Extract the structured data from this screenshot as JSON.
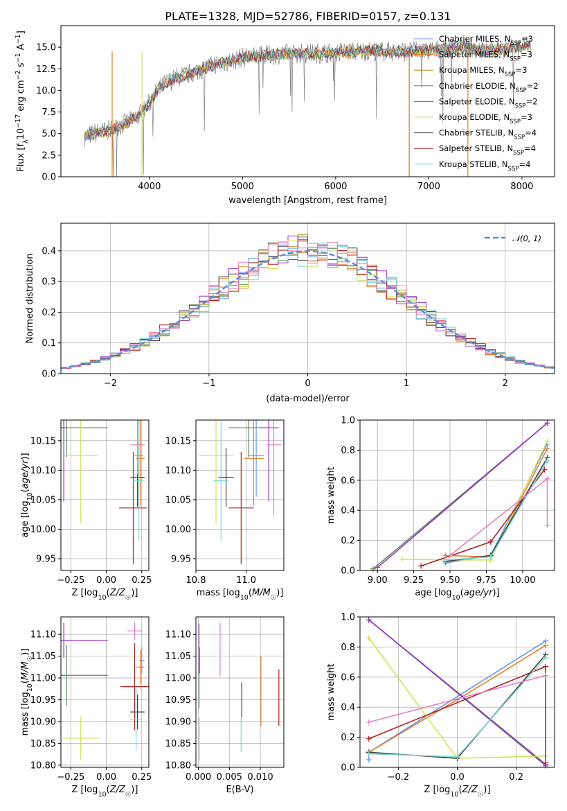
{
  "page": {
    "title": "PLATE=1328, MJD=52786, FIBERID=0157, z=0.131"
  },
  "chart_data": [
    {
      "id": "spectrum",
      "type": "line",
      "title": "PLATE=1328, MJD=52786, FIBERID=0157, z=0.131",
      "xlabel": "wavelength [Angstrom, rest frame]",
      "ylabel": "Flux [f_λ 10^-17 erg cm^-2 s^-1 A^-1]",
      "xlim": [
        3050,
        8350
      ],
      "ylim": [
        0,
        17.5
      ],
      "xticks": [
        4000,
        5000,
        6000,
        7000,
        8000
      ],
      "yticks": [
        0.0,
        2.5,
        5.0,
        7.5,
        10.0,
        12.5,
        15.0
      ],
      "xtick_labels": [
        "4000",
        "5000",
        "6000",
        "7000",
        "8000"
      ],
      "ytick_labels": [
        "0.0",
        "2.5",
        "5.0",
        "7.5",
        "10.0",
        "12.5",
        "15.0"
      ],
      "grid": false,
      "legend_position": "top-right",
      "data_color": "#808080",
      "data_x": [
        3300,
        3400,
        3500,
        3600,
        3700,
        3800,
        3900,
        4000,
        4100,
        4200,
        4300,
        4400,
        4500,
        4600,
        4700,
        4800,
        4900,
        5000,
        5200,
        5400,
        5600,
        5800,
        6000,
        6200,
        6400,
        6600,
        6800,
        7000,
        7200,
        7400,
        7600,
        7800,
        8000,
        8100
      ],
      "data_y": [
        4.6,
        5.0,
        5.2,
        5.5,
        6.0,
        6.5,
        7.2,
        8.5,
        10.2,
        11.0,
        11.5,
        11.8,
        12.2,
        12.6,
        13.0,
        13.2,
        13.5,
        13.8,
        14.0,
        14.2,
        14.3,
        14.3,
        14.4,
        14.5,
        14.6,
        14.5,
        14.5,
        14.6,
        14.8,
        15.0,
        14.6,
        14.8,
        15.0,
        15.4
      ],
      "series": [
        {
          "name": "Chabrier MILES, N_SSP=3",
          "label_main": "Chabrier MILES, N",
          "label_sub": "SSP",
          "label_tail": "=3",
          "color": "#6495ed"
        },
        {
          "name": "Salpeter MILES, N_SSP=3",
          "label_main": "Salpeter MILES, N",
          "label_sub": "SSP",
          "label_tail": "=3",
          "color": "#e57f26"
        },
        {
          "name": "Kroupa MILES, N_SSP=3",
          "label_main": "Kroupa MILES, N",
          "label_sub": "SSP",
          "label_tail": "=3",
          "color": "#b8860b"
        },
        {
          "name": "Chabrier ELODIE, N_SSP=2",
          "label_main": "Chabrier ELODIE, N",
          "label_sub": "SSP",
          "label_tail": "=2",
          "color": "#5a8a5a"
        },
        {
          "name": "Salpeter ELODIE, N_SSP=2",
          "label_main": "Salpeter ELODIE, N",
          "label_sub": "SSP",
          "label_tail": "=2",
          "color": "#9932cc"
        },
        {
          "name": "Kroupa ELODIE, N_SSP=3",
          "label_main": "Kroupa ELODIE, N",
          "label_sub": "SSP",
          "label_tail": "=3",
          "color": "#d4e157"
        },
        {
          "name": "Chabrier STELIB, N_SSP=4",
          "label_main": "Chabrier STELIB, N",
          "label_sub": "SSP",
          "label_tail": "=4",
          "color": "#404040"
        },
        {
          "name": "Salpeter STELIB, N_SSP=4",
          "label_main": "Salpeter STELIB, N",
          "label_sub": "SSP",
          "label_tail": "=4",
          "color": "#b22222"
        },
        {
          "name": "Kroupa STELIB, N_SSP=4",
          "label_main": "Kroupa STELIB, N",
          "label_sub": "SSP",
          "label_tail": "=4",
          "color": "#7fd6d6"
        }
      ]
    },
    {
      "id": "residuals",
      "type": "line",
      "xlabel": "(data-model)/error",
      "ylabel": "Normed distribution",
      "xlim": [
        -2.5,
        2.5
      ],
      "ylim": [
        0,
        0.49
      ],
      "xticks": [
        -2,
        -1,
        0,
        1,
        2
      ],
      "yticks": [
        0.0,
        0.1,
        0.2,
        0.3,
        0.4
      ],
      "xtick_labels": [
        "−2",
        "−1",
        "0",
        "1",
        "2"
      ],
      "ytick_labels": [
        "0.0",
        "0.1",
        "0.2",
        "0.3",
        "0.4"
      ],
      "grid": true,
      "legend_position": "top-right",
      "legend_label": "𝒩(0, 1)",
      "normal_color": "#5b8fd6"
    },
    {
      "id": "age_vs_Z",
      "type": "scatter",
      "xlabel": "Z [log10(Z/Z☉)]",
      "ylabel": "age  [log10(age/yr)]",
      "xlim": [
        -0.32,
        0.3
      ],
      "ylim": [
        9.93,
        10.185
      ],
      "xticks": [
        -0.25,
        0.0,
        0.25
      ],
      "yticks": [
        9.95,
        10.0,
        10.05,
        10.1,
        10.15
      ],
      "xtick_labels": [
        "−0.25",
        "0.00",
        "0.25"
      ],
      "ytick_labels": [
        "9.95",
        "10.00",
        "10.05",
        "10.10",
        "10.15"
      ],
      "grid": true,
      "points": [
        {
          "color": "#6495ed",
          "x": 0.23,
          "y": 10.125,
          "xerr": 0.03,
          "yerr": 0.07
        },
        {
          "color": "#e57f26",
          "x": 0.24,
          "y": 10.12,
          "xerr": 0.03,
          "yerr": 0.08
        },
        {
          "color": "#5a8a5a",
          "x": -0.28,
          "y": 10.172,
          "xerr": 0.29,
          "yerr": 0.05
        },
        {
          "color": "#9932cc",
          "x": -0.3,
          "y": 10.172,
          "xerr": 0.02,
          "yerr": 0.125
        },
        {
          "color": "#d4e157",
          "x": -0.18,
          "y": 10.125,
          "xerr": 0.12,
          "yerr": 0.115
        },
        {
          "color": "#404040",
          "x": 0.22,
          "y": 10.088,
          "xerr": 0.05,
          "yerr": 0.05
        },
        {
          "color": "#b22222",
          "x": 0.19,
          "y": 10.036,
          "xerr": 0.1,
          "yerr": 0.095
        },
        {
          "color": "#7fd6d6",
          "x": 0.23,
          "y": 10.082,
          "xerr": 0.04,
          "yerr": 0.1
        },
        {
          "color": "#e680c0",
          "x": 0.22,
          "y": 10.143,
          "xerr": 0.05,
          "yerr": 0.05
        }
      ]
    },
    {
      "id": "age_vs_mass",
      "type": "scatter",
      "xlabel": "mass [log10(M/M☉)]",
      "ylabel": "",
      "xlim": [
        10.8,
        11.15
      ],
      "ylim": [
        9.93,
        10.185
      ],
      "xticks": [
        10.8,
        11.0
      ],
      "yticks": [
        9.95,
        10.0,
        10.05,
        10.1,
        10.15
      ],
      "xtick_labels": [
        "10.8",
        "11.0"
      ],
      "ytick_labels": [
        "9.95",
        "10.00",
        "10.05",
        "10.10",
        "10.15"
      ],
      "grid": true,
      "points": [
        {
          "color": "#6495ed",
          "x": 11.04,
          "y": 10.125,
          "xerr": 0.03,
          "yerr": 0.07
        },
        {
          "color": "#e57f26",
          "x": 11.03,
          "y": 10.12,
          "xerr": 0.04,
          "yerr": 0.08
        },
        {
          "color": "#5a8a5a",
          "x": 11.01,
          "y": 10.172,
          "xerr": 0.08,
          "yerr": 0.05
        },
        {
          "color": "#9932cc",
          "x": 11.09,
          "y": 10.172,
          "xerr": 0.04,
          "yerr": 0.125
        },
        {
          "color": "#d4e157",
          "x": 10.88,
          "y": 10.125,
          "xerr": 0.07,
          "yerr": 0.115
        },
        {
          "color": "#404040",
          "x": 10.92,
          "y": 10.088,
          "xerr": 0.03,
          "yerr": 0.05
        },
        {
          "color": "#b22222",
          "x": 10.98,
          "y": 10.036,
          "xerr": 0.05,
          "yerr": 0.095
        },
        {
          "color": "#7fd6d6",
          "x": 10.9,
          "y": 10.082,
          "xerr": 0.03,
          "yerr": 0.1
        },
        {
          "color": "#e680c0",
          "x": 11.11,
          "y": 10.143,
          "xerr": 0.03,
          "yerr": 0.12
        }
      ]
    },
    {
      "id": "weight_vs_age",
      "type": "line",
      "xlabel": "age  [log10(age/yr)]",
      "ylabel": "mass weight",
      "xlim": [
        8.88,
        10.22
      ],
      "ylim": [
        0,
        1
      ],
      "xticks": [
        9.0,
        9.25,
        9.5,
        9.75,
        10.0
      ],
      "yticks": [
        0.0,
        0.2,
        0.4,
        0.6,
        0.8,
        1.0
      ],
      "xtick_labels": [
        "9.00",
        "9.25",
        "9.50",
        "9.75",
        "10.00"
      ],
      "ytick_labels": [
        "0.0",
        "0.2",
        "0.4",
        "0.6",
        "0.8",
        "1.0"
      ],
      "grid": true,
      "lines": [
        {
          "color": "#6495ed",
          "x": [
            9.47,
            9.78,
            10.17
          ],
          "y": [
            0.05,
            0.1,
            0.84
          ]
        },
        {
          "color": "#e57f26",
          "x": [
            9.47,
            9.78,
            10.17
          ],
          "y": [
            0.1,
            0.09,
            0.81
          ]
        },
        {
          "color": "#5a8a5a",
          "x": [
            8.97,
            10.17
          ],
          "y": [
            0.01,
            0.98
          ]
        },
        {
          "color": "#9932cc",
          "x": [
            9.0,
            10.17
          ],
          "y": [
            0.02,
            0.98
          ]
        },
        {
          "color": "#d4e157",
          "x": [
            9.17,
            9.47,
            9.78,
            10.17
          ],
          "y": [
            0.075,
            0.07,
            0.07,
            0.86
          ]
        },
        {
          "color": "#404040",
          "x": [
            9.47,
            9.78,
            10.17
          ],
          "y": [
            0.06,
            0.1,
            0.75
          ]
        },
        {
          "color": "#b22222",
          "x": [
            9.3,
            9.78,
            10.15
          ],
          "y": [
            0.03,
            0.19,
            0.67
          ]
        },
        {
          "color": "#7fd6d6",
          "x": [
            9.47,
            9.78,
            10.17
          ],
          "y": [
            0.07,
            0.09,
            0.73
          ]
        },
        {
          "color": "#e680c0",
          "x": [
            9.5,
            10.17,
            10.17
          ],
          "y": [
            0.1,
            0.61,
            0.3
          ]
        }
      ]
    },
    {
      "id": "mass_vs_Z",
      "type": "scatter",
      "xlabel": "Z [log10(Z/Z☉)]",
      "ylabel": "mass [log10(M/M☉)]",
      "xlim": [
        -0.32,
        0.3
      ],
      "ylim": [
        10.795,
        11.14
      ],
      "xticks": [
        -0.25,
        0.0,
        0.25
      ],
      "yticks": [
        10.8,
        10.85,
        10.9,
        10.95,
        11.0,
        11.05,
        11.1
      ],
      "xtick_labels": [
        "−0.25",
        "0.00",
        "0.25"
      ],
      "ytick_labels": [
        "10.80",
        "10.85",
        "10.90",
        "10.95",
        "11.00",
        "11.05",
        "11.10"
      ],
      "grid": true,
      "points": [
        {
          "color": "#6495ed",
          "x": 0.25,
          "y": 11.04,
          "xerr": 0.02,
          "yerr": 0.03
        },
        {
          "color": "#e57f26",
          "x": 0.24,
          "y": 11.025,
          "xerr": 0.03,
          "yerr": 0.04
        },
        {
          "color": "#5a8a5a",
          "x": -0.28,
          "y": 11.006,
          "xerr": 0.29,
          "yerr": 0.07
        },
        {
          "color": "#9932cc",
          "x": -0.3,
          "y": 11.086,
          "xerr": 0.31,
          "yerr": 0.04
        },
        {
          "color": "#d4e157",
          "x": -0.18,
          "y": 10.862,
          "xerr": 0.13,
          "yerr": 0.05
        },
        {
          "color": "#404040",
          "x": 0.22,
          "y": 10.922,
          "xerr": 0.05,
          "yerr": 0.04
        },
        {
          "color": "#b22222",
          "x": 0.2,
          "y": 10.98,
          "xerr": 0.1,
          "yerr": 0.1
        },
        {
          "color": "#7fd6d6",
          "x": 0.21,
          "y": 10.905,
          "xerr": 0.04,
          "yerr": 0.07
        },
        {
          "color": "#e680c0",
          "x": 0.2,
          "y": 11.108,
          "xerr": 0.05,
          "yerr": 0.02
        }
      ]
    },
    {
      "id": "mass_vs_ebv",
      "type": "scatter",
      "xlabel": "E(B-V)",
      "ylabel": "",
      "xlim": [
        -0.0004,
        0.0138
      ],
      "ylim": [
        10.795,
        11.14
      ],
      "xticks": [
        0.0,
        0.005,
        0.01
      ],
      "yticks": [
        10.8,
        10.85,
        10.9,
        10.95,
        11.0,
        11.05,
        11.1
      ],
      "xtick_labels": [
        "0.000",
        "0.005",
        "0.010"
      ],
      "ytick_labels": [
        "10.80",
        "10.85",
        "10.90",
        "10.95",
        "11.00",
        "11.05",
        "11.10"
      ],
      "grid": true,
      "points": [
        {
          "color": "#6495ed",
          "x": 0.0002,
          "y": 11.04,
          "xerr": 0,
          "yerr": 0.03
        },
        {
          "color": "#e57f26",
          "x": 0.0101,
          "y": 10.97,
          "xerr": 0,
          "yerr": 0.08
        },
        {
          "color": "#5a8a5a",
          "x": 0.0001,
          "y": 10.98,
          "xerr": 0,
          "yerr": 0.05
        },
        {
          "color": "#9932cc",
          "x": 0.0001,
          "y": 11.07,
          "xerr": 0,
          "yerr": 0.055
        },
        {
          "color": "#d4e157",
          "x": 0.0002,
          "y": 10.86,
          "xerr": 0,
          "yerr": 0.05
        },
        {
          "color": "#404040",
          "x": 0.007,
          "y": 10.95,
          "xerr": 0,
          "yerr": 0.04
        },
        {
          "color": "#b22222",
          "x": 0.013,
          "y": 10.955,
          "xerr": 0,
          "yerr": 0.065
        },
        {
          "color": "#7fd6d6",
          "x": 0.0069,
          "y": 10.87,
          "xerr": 0,
          "yerr": 0.04
        },
        {
          "color": "#e680c0",
          "x": 0.0035,
          "y": 11.065,
          "xerr": 0,
          "yerr": 0.062
        }
      ]
    },
    {
      "id": "weight_vs_Z",
      "type": "line",
      "xlabel": "Z [log10(Z/Z☉)]",
      "ylabel": "mass weight",
      "xlim": [
        -0.33,
        0.33
      ],
      "ylim": [
        0,
        1
      ],
      "xticks": [
        -0.2,
        0.0,
        0.2
      ],
      "yticks": [
        0.0,
        0.2,
        0.4,
        0.6,
        0.8,
        1.0
      ],
      "xtick_labels": [
        "−0.2",
        "0.0",
        "0.2"
      ],
      "ytick_labels": [
        "0.0",
        "0.2",
        "0.4",
        "0.6",
        "0.8",
        "1.0"
      ],
      "grid": true,
      "lines": [
        {
          "color": "#6495ed",
          "x": [
            -0.3,
            -0.3,
            0.3
          ],
          "y": [
            0.05,
            0.1,
            0.84
          ]
        },
        {
          "color": "#e57f26",
          "x": [
            -0.3,
            0.0,
            0.3
          ],
          "y": [
            0.1,
            0.45,
            0.81
          ]
        },
        {
          "color": "#5a8a5a",
          "x": [
            -0.3,
            0.3
          ],
          "y": [
            0.98,
            0.01
          ]
        },
        {
          "color": "#9932cc",
          "x": [
            -0.3,
            0.3
          ],
          "y": [
            0.98,
            0.02
          ]
        },
        {
          "color": "#d4e157",
          "x": [
            -0.3,
            0.0,
            0.3
          ],
          "y": [
            0.86,
            0.06,
            0.075
          ]
        },
        {
          "color": "#404040",
          "x": [
            -0.3,
            0.0,
            0.3
          ],
          "y": [
            0.1,
            0.06,
            0.75
          ]
        },
        {
          "color": "#b22222",
          "x": [
            -0.3,
            0.3,
            0.3
          ],
          "y": [
            0.19,
            0.67,
            0.03
          ]
        },
        {
          "color": "#7fd6d6",
          "x": [
            -0.3,
            0.0,
            0.3
          ],
          "y": [
            0.09,
            0.07,
            0.73
          ]
        },
        {
          "color": "#e680c0",
          "x": [
            -0.3,
            0.3
          ],
          "y": [
            0.3,
            0.61
          ]
        }
      ]
    }
  ]
}
